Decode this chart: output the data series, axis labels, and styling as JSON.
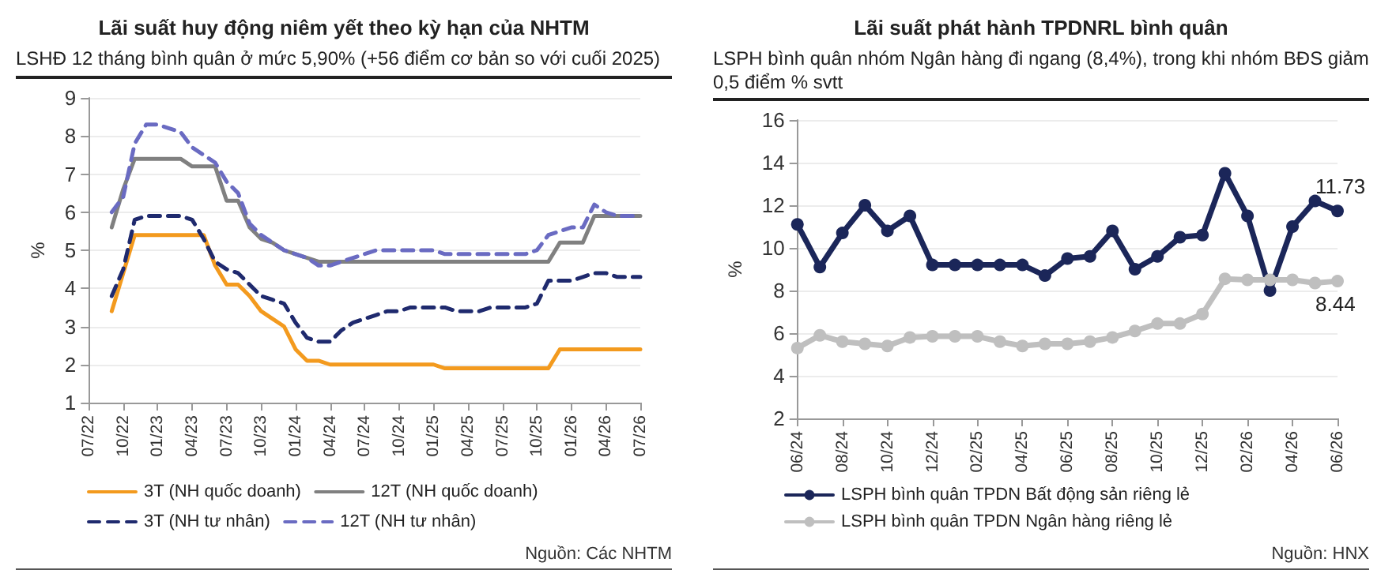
{
  "chart_data": [
    {
      "type": "line",
      "title": "Lãi suất huy động niêm yết theo kỳ hạn của NHTM",
      "subtitle": "LSHĐ 12 tháng bình quân ở mức 5,90% (+56 điểm cơ bản so với cuối 2025)",
      "ylabel": "%",
      "annotations": [
        "Nguồn: Các NHTM"
      ],
      "categories": [
        "07/22",
        null,
        null,
        "10/22",
        null,
        null,
        "01/23",
        null,
        null,
        "04/23",
        null,
        null,
        "07/23",
        null,
        null,
        "10/23",
        null,
        null,
        "01/24",
        null,
        null,
        "04/24",
        null,
        null,
        "07/24",
        null,
        null,
        "10/24",
        null,
        null,
        "01/25",
        null,
        null,
        "04/25",
        null,
        null,
        "07/25",
        null,
        null,
        "10/25",
        null,
        null,
        "01/26",
        null,
        null,
        "04/26",
        null,
        null,
        "07/26"
      ],
      "ylim": [
        1,
        9
      ],
      "yticks": [
        1,
        2,
        3,
        4,
        5,
        6,
        7,
        8,
        9
      ],
      "grid": "y",
      "legend": "bottom",
      "marker": "none",
      "series": [
        {
          "name": "3T (NH quốc doanh)",
          "color": "#f39a1e",
          "line_style": "solid",
          "values": [
            null,
            null,
            3.4,
            4.4,
            5.4,
            5.4,
            5.4,
            5.4,
            5.4,
            5.4,
            5.4,
            4.6,
            4.1,
            4.1,
            3.8,
            3.4,
            3.2,
            3.0,
            2.4,
            2.1,
            2.1,
            2.0,
            2.0,
            2.0,
            2.0,
            2.0,
            2.0,
            2.0,
            2.0,
            2.0,
            2.0,
            1.9,
            1.9,
            1.9,
            1.9,
            1.9,
            1.9,
            1.9,
            1.9,
            1.9,
            1.9,
            2.4,
            2.4,
            2.4,
            2.4,
            2.4,
            2.4,
            2.4,
            2.4
          ]
        },
        {
          "name": "12T (NH quốc doanh)",
          "color": "#808080",
          "line_style": "solid",
          "values": [
            null,
            null,
            5.6,
            6.6,
            7.4,
            7.4,
            7.4,
            7.4,
            7.4,
            7.2,
            7.2,
            7.2,
            6.3,
            6.3,
            5.6,
            5.3,
            5.2,
            5.0,
            4.9,
            4.8,
            4.7,
            4.7,
            4.7,
            4.7,
            4.7,
            4.7,
            4.7,
            4.7,
            4.7,
            4.7,
            4.7,
            4.7,
            4.7,
            4.7,
            4.7,
            4.7,
            4.7,
            4.7,
            4.7,
            4.7,
            4.7,
            5.2,
            5.2,
            5.2,
            5.9,
            5.9,
            5.9,
            5.9,
            5.9
          ]
        },
        {
          "name": "3T (NH tư nhân)",
          "color": "#1f2a6e",
          "line_style": "dashed",
          "values": [
            null,
            null,
            3.8,
            4.5,
            5.8,
            5.9,
            5.9,
            5.9,
            5.9,
            5.8,
            5.3,
            4.7,
            4.5,
            4.4,
            4.1,
            3.8,
            3.7,
            3.6,
            3.1,
            2.7,
            2.6,
            2.6,
            2.9,
            3.1,
            3.2,
            3.3,
            3.4,
            3.4,
            3.5,
            3.5,
            3.5,
            3.5,
            3.4,
            3.4,
            3.4,
            3.5,
            3.5,
            3.5,
            3.5,
            3.6,
            4.2,
            4.2,
            4.2,
            4.3,
            4.4,
            4.4,
            4.3,
            4.3,
            4.3
          ]
        },
        {
          "name": "12T (NH tư nhân)",
          "color": "#6a6bc2",
          "line_style": "dashed",
          "values": [
            null,
            null,
            6.0,
            6.4,
            7.8,
            8.3,
            8.3,
            8.2,
            8.1,
            7.7,
            7.5,
            7.3,
            6.8,
            6.5,
            5.7,
            5.4,
            5.2,
            5.0,
            4.9,
            4.8,
            4.6,
            4.6,
            4.7,
            4.8,
            4.9,
            5.0,
            5.0,
            5.0,
            5.0,
            5.0,
            5.0,
            4.9,
            4.9,
            4.9,
            4.9,
            4.9,
            4.9,
            4.9,
            4.9,
            5.0,
            5.4,
            5.5,
            5.6,
            5.6,
            6.2,
            6.0,
            5.9,
            5.9,
            5.9
          ]
        }
      ]
    },
    {
      "type": "line",
      "title": "Lãi suất phát hành TPDNRL bình quân",
      "subtitle": "LSPH bình quân nhóm Ngân hàng đi ngang (8,4%), trong khi nhóm BĐS giảm 0,5 điểm % svtt",
      "ylabel": "%",
      "annotations": [
        "Nguồn: HNX"
      ],
      "categories": [
        "06/24",
        null,
        "08/24",
        null,
        "10/24",
        null,
        "12/24",
        null,
        "02/25",
        null,
        "04/25",
        null,
        "06/25",
        null,
        "08/25",
        null,
        "10/25",
        null,
        "12/25",
        null,
        "02/26",
        null,
        "04/26",
        null,
        "06/26"
      ],
      "ylim": [
        2,
        16
      ],
      "yticks": [
        2,
        4,
        6,
        8,
        10,
        12,
        14,
        16
      ],
      "grid": "y",
      "legend": "bottom",
      "marker": "circle",
      "series": [
        {
          "name": "LSPH bình quân TPDN Bất động sản riêng lẻ",
          "color": "#1b2659",
          "values": [
            11.1,
            9.1,
            10.7,
            12.0,
            10.8,
            11.5,
            9.2,
            9.2,
            9.2,
            9.2,
            9.2,
            8.7,
            9.5,
            9.6,
            10.8,
            9.0,
            9.6,
            10.5,
            10.6,
            13.5,
            11.5,
            8.0,
            11.0,
            12.2,
            11.73
          ],
          "value_labels": [
            null,
            null,
            null,
            null,
            null,
            null,
            null,
            null,
            null,
            null,
            null,
            null,
            null,
            null,
            null,
            null,
            null,
            null,
            null,
            null,
            null,
            null,
            null,
            null,
            "11.73"
          ]
        },
        {
          "name": "LSPH bình quân TPDN Ngân hàng riêng lẻ",
          "color": "#bfbfbf",
          "values": [
            5.3,
            5.9,
            5.6,
            5.5,
            5.4,
            5.8,
            5.85,
            5.85,
            5.85,
            5.6,
            5.4,
            5.5,
            5.5,
            5.6,
            5.8,
            6.1,
            6.45,
            6.45,
            6.9,
            8.55,
            8.5,
            8.5,
            8.5,
            8.35,
            8.44
          ],
          "value_labels": [
            null,
            null,
            null,
            null,
            null,
            null,
            null,
            null,
            null,
            null,
            null,
            null,
            null,
            null,
            null,
            null,
            null,
            null,
            null,
            null,
            null,
            null,
            null,
            null,
            "8.44"
          ]
        }
      ]
    }
  ]
}
